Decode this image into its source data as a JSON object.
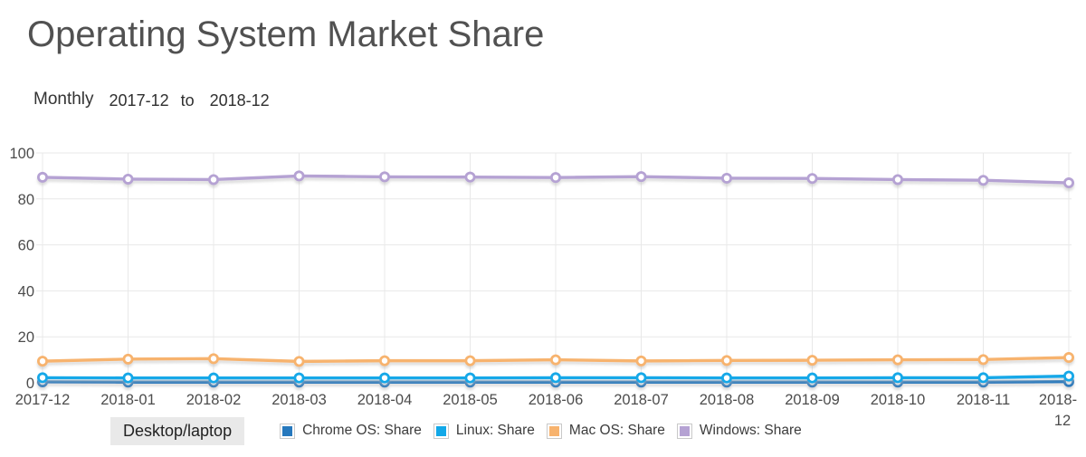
{
  "page": {
    "title": "Operating System Market Share",
    "period_label": "Monthly",
    "date_from": "2017-12",
    "to_label": "to",
    "date_to": "2018-12"
  },
  "tabs": {
    "desktop_laptop": "Desktop/laptop"
  },
  "legend": [
    {
      "id": "chrome-os",
      "label": "Chrome OS: Share",
      "color": "#2678bd"
    },
    {
      "id": "linux",
      "label": "Linux: Share",
      "color": "#12a8e8"
    },
    {
      "id": "mac-os",
      "label": "Mac OS: Share",
      "color": "#f7b36e"
    },
    {
      "id": "windows",
      "label": "Windows: Share",
      "color": "#b5a2d3"
    }
  ],
  "chart_data": {
    "type": "line",
    "title": "Operating System Market Share",
    "xlabel": "",
    "ylabel": "",
    "ylim": [
      0,
      100
    ],
    "yticks": [
      0,
      20,
      40,
      60,
      80,
      100
    ],
    "grid": true,
    "grid_color": "#e8e8e8",
    "axis_label_color": "#4c4c4c",
    "legend_position": "bottom",
    "x": [
      "2017-12",
      "2018-01",
      "2018-02",
      "2018-03",
      "2018-04",
      "2018-05",
      "2018-06",
      "2018-07",
      "2018-08",
      "2018-09",
      "2018-10",
      "2018-11",
      "2018-12"
    ],
    "series": [
      {
        "id": "chrome-os",
        "name": "Chrome OS: Share",
        "color": "#2678bd",
        "values": [
          0.4,
          0.3,
          0.3,
          0.3,
          0.3,
          0.3,
          0.3,
          0.3,
          0.3,
          0.3,
          0.3,
          0.3,
          0.5
        ]
      },
      {
        "id": "linux",
        "name": "Linux: Share",
        "color": "#12a8e8",
        "values": [
          2.2,
          2.1,
          2.1,
          2.1,
          2.1,
          2.1,
          2.2,
          2.2,
          2.1,
          2.1,
          2.2,
          2.2,
          2.9
        ]
      },
      {
        "id": "mac-os",
        "name": "Mac OS: Share",
        "color": "#f7b36e",
        "values": [
          9.4,
          10.3,
          10.5,
          9.3,
          9.6,
          9.6,
          10.0,
          9.5,
          9.7,
          9.8,
          10.0,
          10.1,
          11.0
        ]
      },
      {
        "id": "windows",
        "name": "Windows: Share",
        "color": "#b5a2d3",
        "values": [
          89.4,
          88.6,
          88.4,
          90.0,
          89.6,
          89.5,
          89.3,
          89.7,
          89.0,
          88.9,
          88.4,
          88.1,
          87.0
        ]
      }
    ]
  }
}
